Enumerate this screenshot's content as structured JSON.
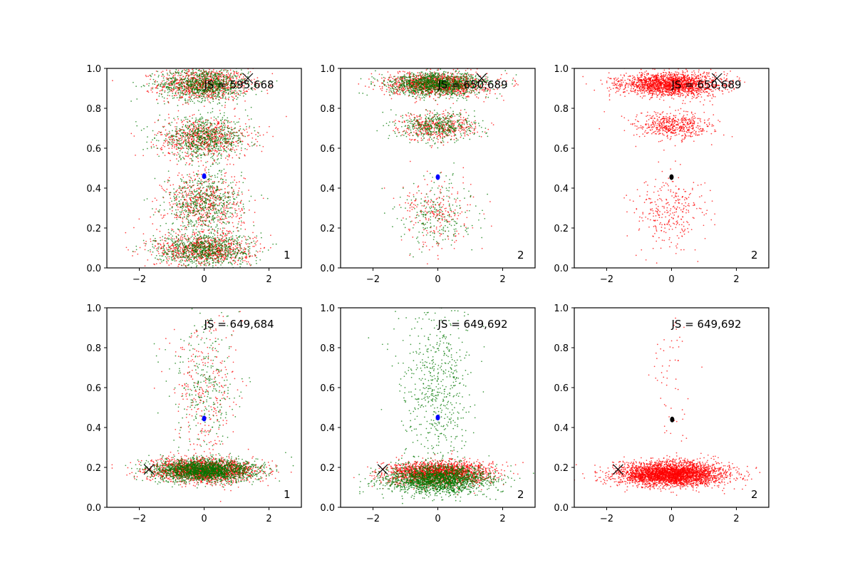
{
  "chart_data": [
    {
      "type": "scatter",
      "panel_id": "r1c1",
      "xlim": [
        -3,
        3
      ],
      "ylim": [
        0,
        1
      ],
      "xticks": [
        "−2",
        "0",
        "2"
      ],
      "xtick_values": [
        -2,
        0,
        2
      ],
      "yticks": [
        "0.0",
        "0.2",
        "0.4",
        "0.6",
        "0.8",
        "1.0"
      ],
      "ytick_values": [
        0,
        0.2,
        0.4,
        0.6,
        0.8,
        1.0
      ],
      "annotation": "JS = 595,668",
      "corner_label": "1",
      "series_colors": [
        "#ff0000",
        "#007700"
      ],
      "clusters": [
        {
          "color": "#ff0000",
          "n": 900,
          "mu_x": 0,
          "sd_x": 0.7,
          "y": 0.92,
          "sd_y": 0.04
        },
        {
          "color": "#007700",
          "n": 900,
          "mu_x": 0,
          "sd_x": 0.7,
          "y": 0.92,
          "sd_y": 0.04
        },
        {
          "color": "#ff0000",
          "n": 700,
          "mu_x": 0,
          "sd_x": 0.7,
          "y": 0.65,
          "sd_y": 0.05
        },
        {
          "color": "#007700",
          "n": 700,
          "mu_x": 0,
          "sd_x": 0.7,
          "y": 0.65,
          "sd_y": 0.05
        },
        {
          "color": "#ff0000",
          "n": 600,
          "mu_x": 0,
          "sd_x": 0.6,
          "y": 0.32,
          "sd_y": 0.08
        },
        {
          "color": "#007700",
          "n": 600,
          "mu_x": 0,
          "sd_x": 0.6,
          "y": 0.32,
          "sd_y": 0.08
        },
        {
          "color": "#ff0000",
          "n": 800,
          "mu_x": 0,
          "sd_x": 0.75,
          "y": 0.09,
          "sd_y": 0.04
        },
        {
          "color": "#007700",
          "n": 800,
          "mu_x": 0,
          "sd_x": 0.75,
          "y": 0.09,
          "sd_y": 0.04
        }
      ],
      "center_marker": {
        "x": 0,
        "y": 0.46,
        "color": "#0000ff"
      },
      "x_marker": {
        "x": 1.35,
        "y": 0.95
      }
    },
    {
      "type": "scatter",
      "panel_id": "r1c2",
      "xlim": [
        -3,
        3
      ],
      "ylim": [
        0,
        1
      ],
      "xticks": [
        "−2",
        "0",
        "2"
      ],
      "xtick_values": [
        -2,
        0,
        2
      ],
      "yticks": [
        "0.0",
        "0.2",
        "0.4",
        "0.6",
        "0.8",
        "1.0"
      ],
      "ytick_values": [
        0,
        0.2,
        0.4,
        0.6,
        0.8,
        1.0
      ],
      "annotation": "JS = 650,689",
      "corner_label": "2",
      "series_colors": [
        "#ff0000",
        "#007700"
      ],
      "clusters": [
        {
          "color": "#ff0000",
          "n": 1300,
          "mu_x": 0,
          "sd_x": 0.75,
          "y": 0.92,
          "sd_y": 0.028
        },
        {
          "color": "#007700",
          "n": 1300,
          "mu_x": 0,
          "sd_x": 0.75,
          "y": 0.92,
          "sd_y": 0.028
        },
        {
          "color": "#ff0000",
          "n": 450,
          "mu_x": 0,
          "sd_x": 0.6,
          "y": 0.71,
          "sd_y": 0.035
        },
        {
          "color": "#007700",
          "n": 450,
          "mu_x": 0,
          "sd_x": 0.6,
          "y": 0.71,
          "sd_y": 0.035
        },
        {
          "color": "#ff0000",
          "n": 230,
          "mu_x": 0,
          "sd_x": 0.55,
          "y": 0.27,
          "sd_y": 0.09
        },
        {
          "color": "#007700",
          "n": 230,
          "mu_x": 0,
          "sd_x": 0.55,
          "y": 0.27,
          "sd_y": 0.09
        }
      ],
      "center_marker": {
        "x": 0,
        "y": 0.455,
        "color": "#0000ff"
      },
      "x_marker": {
        "x": 1.35,
        "y": 0.95
      }
    },
    {
      "type": "scatter",
      "panel_id": "r1c3",
      "xlim": [
        -3,
        3
      ],
      "ylim": [
        0,
        1
      ],
      "xticks": [
        "−2",
        "0",
        "2"
      ],
      "xtick_values": [
        -2,
        0,
        2
      ],
      "yticks": [
        "0.0",
        "0.2",
        "0.4",
        "0.6",
        "0.8",
        "1.0"
      ],
      "ytick_values": [
        0,
        0.2,
        0.4,
        0.6,
        0.8,
        1.0
      ],
      "annotation": "JS = 650,689",
      "corner_label": "2",
      "series_colors": [
        "#ff0000"
      ],
      "clusters": [
        {
          "color": "#ff0000",
          "n": 2000,
          "mu_x": 0,
          "sd_x": 0.75,
          "y": 0.92,
          "sd_y": 0.028
        },
        {
          "color": "#ff0000",
          "n": 550,
          "mu_x": 0,
          "sd_x": 0.6,
          "y": 0.71,
          "sd_y": 0.035
        },
        {
          "color": "#ff0000",
          "n": 300,
          "mu_x": 0,
          "sd_x": 0.55,
          "y": 0.27,
          "sd_y": 0.09
        }
      ],
      "center_marker": {
        "x": 0,
        "y": 0.455,
        "color": "#000000"
      },
      "x_marker": {
        "x": 1.4,
        "y": 0.95
      }
    },
    {
      "type": "scatter",
      "panel_id": "r2c1",
      "xlim": [
        -3,
        3
      ],
      "ylim": [
        0,
        1
      ],
      "xticks": [
        "−2",
        "0",
        "2"
      ],
      "xtick_values": [
        -2,
        0,
        2
      ],
      "yticks": [
        "0.0",
        "0.2",
        "0.4",
        "0.6",
        "0.8",
        "1.0"
      ],
      "ytick_values": [
        0,
        0.2,
        0.4,
        0.6,
        0.8,
        1.0
      ],
      "annotation": "JS = 649,684",
      "corner_label": "1",
      "series_colors": [
        "#ff0000",
        "#007700"
      ],
      "clusters": [
        {
          "color": "#ff0000",
          "n": 2000,
          "mu_x": 0,
          "sd_x": 0.8,
          "y": 0.185,
          "sd_y": 0.028
        },
        {
          "color": "#007700",
          "n": 2000,
          "mu_x": 0,
          "sd_x": 0.8,
          "y": 0.185,
          "sd_y": 0.028
        },
        {
          "color": "#ff0000",
          "n": 300,
          "mu_x": 0,
          "sd_x": 0.5,
          "y": 0.6,
          "sd_y": 0.2
        },
        {
          "color": "#007700",
          "n": 300,
          "mu_x": 0,
          "sd_x": 0.5,
          "y": 0.6,
          "sd_y": 0.2
        }
      ],
      "center_marker": {
        "x": 0,
        "y": 0.445,
        "color": "#0000ff"
      },
      "x_marker": {
        "x": -1.7,
        "y": 0.19
      }
    },
    {
      "type": "scatter",
      "panel_id": "r2c2",
      "xlim": [
        -3,
        3
      ],
      "ylim": [
        0,
        1
      ],
      "xticks": [
        "−2",
        "0",
        "2"
      ],
      "xtick_values": [
        -2,
        0,
        2
      ],
      "yticks": [
        "0.0",
        "0.2",
        "0.4",
        "0.6",
        "0.8",
        "1.0"
      ],
      "ytick_values": [
        0,
        0.2,
        0.4,
        0.6,
        0.8,
        1.0
      ],
      "annotation": "JS = 649,692",
      "corner_label": "2",
      "series_colors": [
        "#ff0000",
        "#007700"
      ],
      "clusters": [
        {
          "color": "#ff0000",
          "n": 2000,
          "mu_x": 0,
          "sd_x": 0.8,
          "y": 0.17,
          "sd_y": 0.03
        },
        {
          "color": "#007700",
          "n": 2000,
          "mu_x": 0,
          "sd_x": 0.8,
          "y": 0.14,
          "sd_y": 0.035
        },
        {
          "color": "#007700",
          "n": 600,
          "mu_x": 0,
          "sd_x": 0.55,
          "y": 0.6,
          "sd_y": 0.22
        }
      ],
      "center_marker": {
        "x": 0,
        "y": 0.45,
        "color": "#0000ff"
      },
      "x_marker": {
        "x": -1.7,
        "y": 0.19
      }
    },
    {
      "type": "scatter",
      "panel_id": "r2c3",
      "xlim": [
        -3,
        3
      ],
      "ylim": [
        0,
        1
      ],
      "xticks": [
        "−2",
        "0",
        "2"
      ],
      "xtick_values": [
        -2,
        0,
        2
      ],
      "yticks": [
        "0.0",
        "0.2",
        "0.4",
        "0.6",
        "0.8",
        "1.0"
      ],
      "ytick_values": [
        0,
        0.2,
        0.4,
        0.6,
        0.8,
        1.0
      ],
      "annotation": "JS = 649,692",
      "corner_label": "2",
      "series_colors": [
        "#ff0000"
      ],
      "clusters": [
        {
          "color": "#ff0000",
          "n": 3500,
          "mu_x": 0,
          "sd_x": 0.8,
          "y": 0.165,
          "sd_y": 0.03
        },
        {
          "color": "#ff0000",
          "n": 60,
          "mu_x": 0,
          "sd_x": 0.3,
          "y": 0.6,
          "sd_y": 0.2
        }
      ],
      "center_marker": {
        "x": 0.02,
        "y": 0.44,
        "color": "#000000"
      },
      "x_marker": {
        "x": -1.65,
        "y": 0.19
      }
    }
  ]
}
